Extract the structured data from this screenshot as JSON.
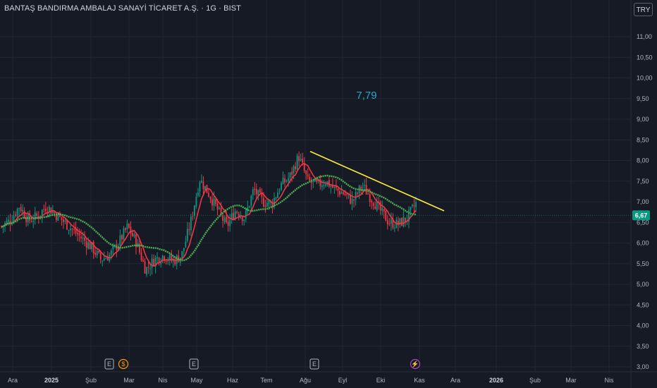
{
  "header": {
    "title": "BANTAŞ BANDIRMA AMBALAJ SANAYİ TİCARET A.Ş. · 1G · BIST",
    "currency_button": "TRY"
  },
  "chart_data": {
    "type": "candlestick",
    "y_axis": {
      "ticks": [
        "3,00",
        "3,50",
        "4,00",
        "4,50",
        "5,00",
        "5,50",
        "6,00",
        "6,50",
        "7,00",
        "7,50",
        "8,00",
        "8,50",
        "9,00",
        "9,50",
        "10,00",
        "10,50",
        "11,00"
      ],
      "ylim": [
        2.95,
        11.55
      ]
    },
    "x_axis": {
      "ticks": [
        {
          "label": "Ara",
          "bold": false
        },
        {
          "label": "2025",
          "bold": true
        },
        {
          "label": "Şub",
          "bold": false
        },
        {
          "label": "Mar",
          "bold": false
        },
        {
          "label": "Nis",
          "bold": false
        },
        {
          "label": "May",
          "bold": false
        },
        {
          "label": "Haz",
          "bold": false
        },
        {
          "label": "Tem",
          "bold": false
        },
        {
          "label": "Ağu",
          "bold": false
        },
        {
          "label": "Eyl",
          "bold": false
        },
        {
          "label": "Eki",
          "bold": false
        },
        {
          "label": "Kas",
          "bold": false
        },
        {
          "label": "Ara",
          "bold": false
        },
        {
          "label": "2026",
          "bold": true
        },
        {
          "label": "Şub",
          "bold": false
        },
        {
          "label": "Mar",
          "bold": false
        },
        {
          "label": "Nis",
          "bold": false
        }
      ]
    },
    "price_path": [
      6.4,
      6.55,
      6.9,
      6.55,
      6.65,
      6.9,
      6.7,
      6.5,
      6.3,
      6.1,
      5.9,
      5.6,
      5.7,
      6.0,
      6.4,
      6.0,
      5.35,
      5.6,
      5.7,
      5.55,
      5.7,
      6.5,
      7.55,
      7.2,
      6.8,
      6.4,
      6.8,
      6.6,
      7.3,
      7.0,
      6.95,
      7.4,
      7.6,
      8.1,
      7.5,
      7.4,
      7.5,
      7.3,
      7.2,
      7.0,
      7.4,
      7.1,
      6.8,
      6.5,
      6.45,
      6.6,
      6.95
    ],
    "current_price": "6,67",
    "series": [
      {
        "color": "#f23645",
        "window": 7
      },
      {
        "color": "#4caf50",
        "window": 26
      }
    ],
    "annotations": [
      {
        "text": "7,79"
      }
    ],
    "events": [
      {
        "label": "E",
        "color": "#b2b5be"
      },
      {
        "label": "$",
        "color": "#ff9800"
      },
      {
        "label": "E",
        "color": "#b2b5be"
      },
      {
        "label": "E",
        "color": "#b2b5be"
      },
      {
        "label": "⚡",
        "color": "#ab47bc"
      }
    ],
    "colors": {
      "up": "#089981",
      "down": "#f23645",
      "trendline": "#ffeb3b",
      "background": "#161a25",
      "grid": "#232632",
      "price_tag": "#089981"
    }
  }
}
